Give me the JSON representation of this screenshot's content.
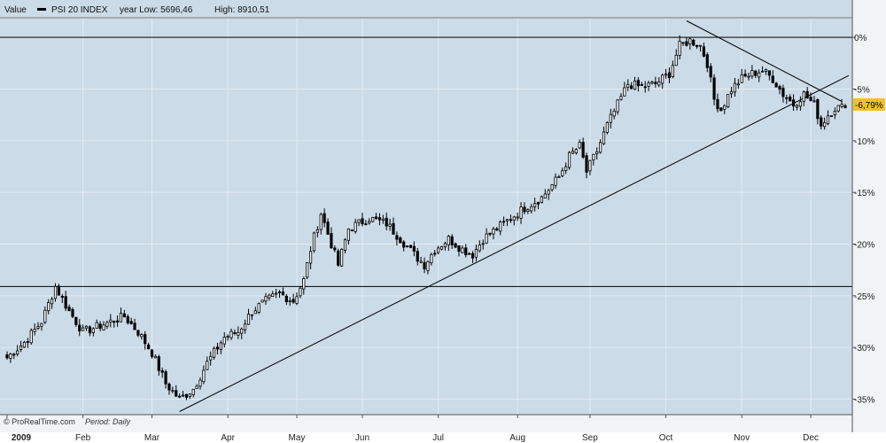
{
  "legend": {
    "label": "Value",
    "series": "PSI 20 INDEX",
    "low_text": "year Low: 5696,46",
    "high_text": "High: 8910,51"
  },
  "footer": {
    "copyright": "© ProRealTime.com",
    "period_label": "Period:",
    "period_value": "Daily"
  },
  "current_badge": "-6,79%",
  "chart_data": {
    "type": "candlestick",
    "title": "",
    "ylabel": "",
    "xlabel": "",
    "series_name": "PSI 20 INDEX",
    "y_unit": "% from year high",
    "ylim": [
      -36.5,
      1.9
    ],
    "y_ticks": [
      0,
      -5,
      -10,
      -15,
      -20,
      -25,
      -30,
      -35
    ],
    "y_tick_labels": [
      "0%",
      "-5%",
      "-10%",
      "-15%",
      "-20%",
      "-25%",
      "-30%",
      "-35%"
    ],
    "x_axis": {
      "months": [
        {
          "label": "2009",
          "index": 0
        },
        {
          "label": "Feb",
          "index": 22
        },
        {
          "label": "Mar",
          "index": 42
        },
        {
          "label": "Apr",
          "index": 64
        },
        {
          "label": "May",
          "index": 84
        },
        {
          "label": "Jun",
          "index": 103
        },
        {
          "label": "Jul",
          "index": 125
        },
        {
          "label": "Aug",
          "index": 148
        },
        {
          "label": "Sep",
          "index": 169
        },
        {
          "label": "Oct",
          "index": 191
        },
        {
          "label": "Nov",
          "index": 213
        },
        {
          "label": "Dec",
          "index": 233
        }
      ],
      "num_days": 244
    },
    "horizontal_lines": [
      0,
      -24.1
    ],
    "trendlines": [
      {
        "x1": 50,
        "y1": -36.2,
        "x2": 244,
        "y2": -3.7
      },
      {
        "x1": 197,
        "y1": 1.6,
        "x2": 242,
        "y2": -6.2
      }
    ],
    "anchors": [
      [
        0,
        -31.0
      ],
      [
        5,
        -29.5
      ],
      [
        10,
        -27.5
      ],
      [
        14,
        -24.1
      ],
      [
        18,
        -26.5
      ],
      [
        22,
        -28.5
      ],
      [
        26,
        -28.0
      ],
      [
        30,
        -27.5
      ],
      [
        34,
        -27.0
      ],
      [
        38,
        -28.5
      ],
      [
        42,
        -30.5
      ],
      [
        46,
        -33.5
      ],
      [
        50,
        -35.0
      ],
      [
        54,
        -34.0
      ],
      [
        58,
        -31.5
      ],
      [
        63,
        -29.0
      ],
      [
        67,
        -28.5
      ],
      [
        71,
        -26.5
      ],
      [
        75,
        -25.5
      ],
      [
        79,
        -24.8
      ],
      [
        83,
        -25.5
      ],
      [
        86,
        -23.5
      ],
      [
        88,
        -20.5
      ],
      [
        91,
        -17.0
      ],
      [
        94,
        -20.0
      ],
      [
        96,
        -22.0
      ],
      [
        99,
        -18.5
      ],
      [
        105,
        -17.5
      ],
      [
        110,
        -18.0
      ],
      [
        114,
        -19.5
      ],
      [
        118,
        -21.0
      ],
      [
        121,
        -22.0
      ],
      [
        124,
        -20.5
      ],
      [
        128,
        -19.5
      ],
      [
        132,
        -20.5
      ],
      [
        135,
        -21.0
      ],
      [
        138,
        -19.5
      ],
      [
        142,
        -18.5
      ],
      [
        146,
        -17.5
      ],
      [
        150,
        -16.5
      ],
      [
        155,
        -15.5
      ],
      [
        160,
        -13.5
      ],
      [
        163,
        -11.5
      ],
      [
        166,
        -10.5
      ],
      [
        168,
        -13.0
      ],
      [
        171,
        -11.0
      ],
      [
        174,
        -8.5
      ],
      [
        177,
        -6.5
      ],
      [
        180,
        -4.5
      ],
      [
        184,
        -4.8
      ],
      [
        188,
        -4.5
      ],
      [
        192,
        -3.5
      ],
      [
        195,
        -0.8
      ],
      [
        198,
        -0.3
      ],
      [
        201,
        -0.8
      ],
      [
        203,
        -2.5
      ],
      [
        205,
        -6.0
      ],
      [
        207,
        -7.0
      ],
      [
        210,
        -5.0
      ],
      [
        213,
        -4.0
      ],
      [
        216,
        -3.5
      ],
      [
        219,
        -3.2
      ],
      [
        222,
        -4.0
      ],
      [
        225,
        -5.5
      ],
      [
        228,
        -6.5
      ],
      [
        231,
        -5.5
      ],
      [
        234,
        -6.5
      ],
      [
        236,
        -8.5
      ],
      [
        238,
        -7.5
      ],
      [
        240,
        -6.8
      ],
      [
        243,
        -6.79
      ]
    ]
  },
  "colors": {
    "plot_bg": "#cbdbe8",
    "header_bg": "#cbdbe8",
    "axis_bg": "#f1f3f6",
    "grid": "#e4ebf1",
    "candle": "#000000",
    "badge_bg": "#f5c02a"
  }
}
